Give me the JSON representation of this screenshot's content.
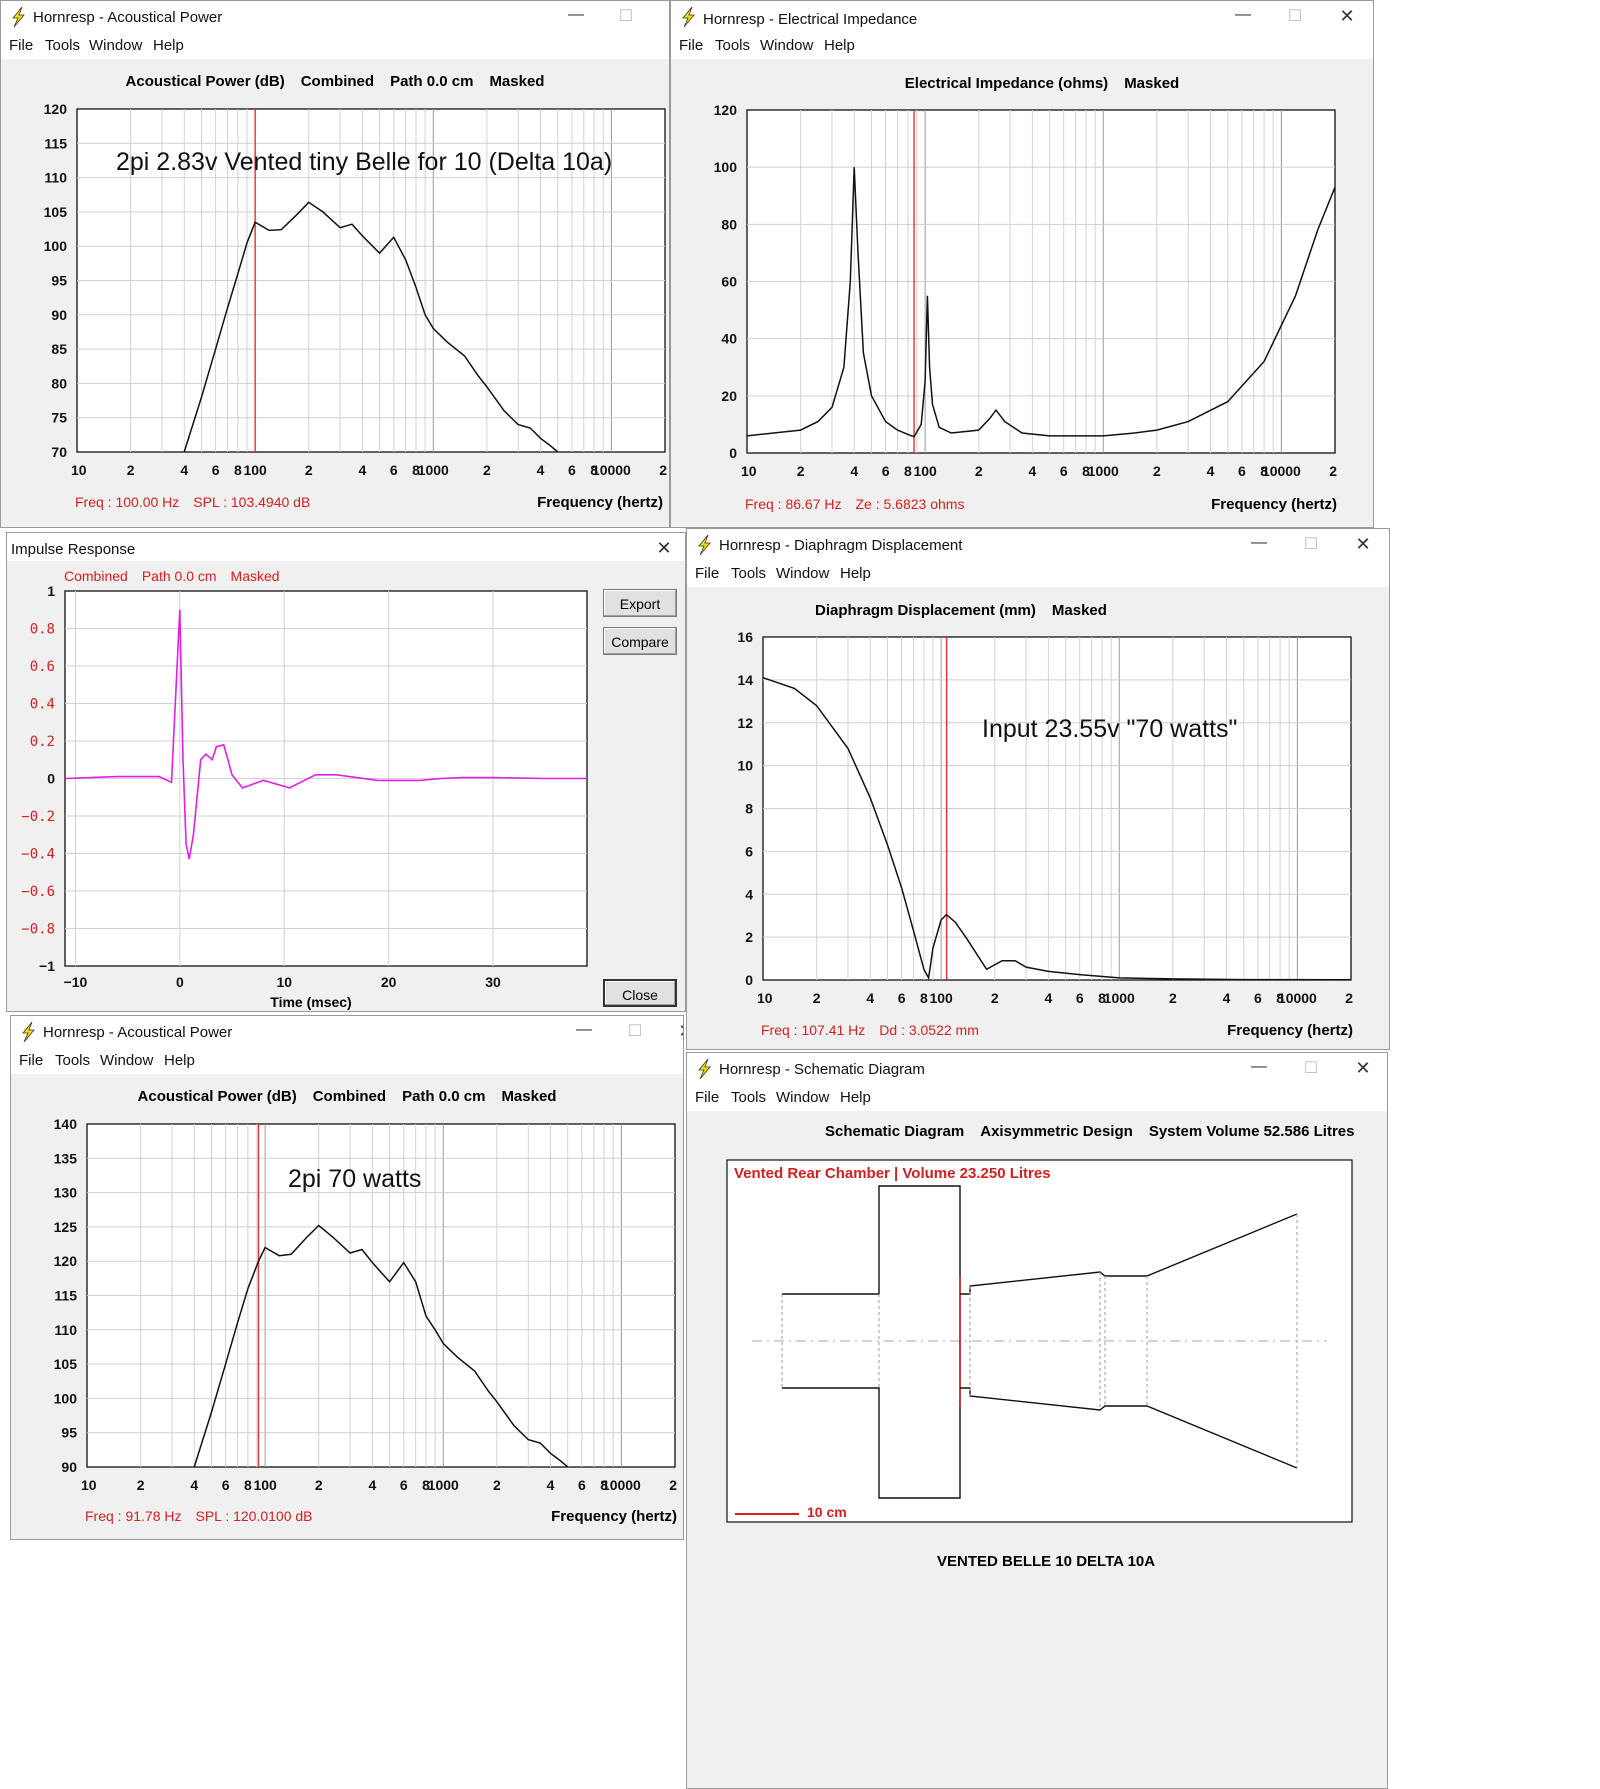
{
  "accent_red": "#e53030",
  "curve_color": "#111111",
  "impulse_color": "#e11fe1",
  "windows": {
    "acoustical_top": {
      "title": "Hornresp - Acoustical Power",
      "menu": [
        "File",
        "Tools",
        "Window",
        "Help"
      ],
      "chart_title": [
        "Acoustical Power (dB)",
        "Combined",
        "Path 0.0 cm",
        "Masked"
      ],
      "annotation": "2pi  2.83v  Vented tiny Belle for 10 (Delta 10a)",
      "status": [
        "Freq : 100.00 Hz",
        "SPL : 103.4940 dB"
      ],
      "xlabel": "Frequency (hertz)"
    },
    "impedance": {
      "title": "Hornresp - Electrical Impedance",
      "menu": [
        "File",
        "Tools",
        "Window",
        "Help"
      ],
      "chart_title": [
        "Electrical Impedance (ohms)",
        "Masked"
      ],
      "status": [
        "Freq : 86.67 Hz",
        "Ze : 5.6823 ohms"
      ],
      "xlabel": "Frequency (hertz)"
    },
    "impulse": {
      "title": "Impulse Response",
      "subtitle": [
        "Combined",
        "Path 0.0 cm",
        "Masked"
      ],
      "xlabel": "Time (msec)",
      "buttons": {
        "export": "Export",
        "compare": "Compare",
        "close": "Close"
      }
    },
    "displacement": {
      "title": "Hornresp - Diaphragm Displacement",
      "menu": [
        "File",
        "Tools",
        "Window",
        "Help"
      ],
      "chart_title": [
        "Diaphragm Displacement (mm)",
        "Masked"
      ],
      "annotation": "Input 23.55v  \"70 watts\"",
      "status": [
        "Freq : 107.41 Hz",
        "Dd : 3.0522 mm"
      ],
      "xlabel": "Frequency (hertz)"
    },
    "acoustical_bottom": {
      "title": "Hornresp - Acoustical Power",
      "menu": [
        "File",
        "Tools",
        "Window",
        "Help"
      ],
      "chart_title": [
        "Acoustical Power (dB)",
        "Combined",
        "Path 0.0 cm",
        "Masked"
      ],
      "annotation": "2pi 70 watts",
      "status": [
        "Freq : 91.78 Hz",
        "SPL : 120.0100 dB"
      ],
      "xlabel": "Frequency (hertz)"
    },
    "schematic": {
      "title": "Hornresp - Schematic Diagram",
      "menu": [
        "File",
        "Tools",
        "Window",
        "Help"
      ],
      "chart_title": [
        "Schematic Diagram",
        "Axisymmetric Design",
        "System Volume 52.586 Litres"
      ],
      "chamber_label": "Vented Rear Chamber | Volume 23.250 Litres",
      "scale_label": "10 cm",
      "footer": "VENTED BELLE 10  DELTA 10A"
    }
  },
  "freq_tick_labels": [
    "10",
    "2",
    "4",
    "6",
    "8",
    "100",
    "2",
    "4",
    "6",
    "8",
    "1000",
    "2",
    "4",
    "6",
    "8",
    "10000",
    "2"
  ],
  "chart_data": [
    {
      "type": "line",
      "id": "acoustical_top",
      "scale": "log-x",
      "xlim": [
        10,
        20000
      ],
      "ylim": [
        70,
        120
      ],
      "y_ticks": [
        "120",
        "115",
        "110",
        "105",
        "100",
        "95",
        "90",
        "85",
        "80",
        "75",
        "70"
      ],
      "cursor_x": 100,
      "series": [
        {
          "x": [
            40,
            50,
            60,
            70,
            80,
            90,
            100,
            120,
            140,
            170,
            200,
            240,
            300,
            350,
            400,
            500,
            600,
            700,
            800,
            900,
            1000,
            1200,
            1500,
            1800,
            2000,
            2500,
            3000,
            3500,
            4000,
            4500,
            5000
          ],
          "y": [
            70,
            78,
            85,
            91,
            96,
            100.5,
            103.5,
            102.3,
            102.4,
            104.5,
            106.4,
            105,
            102.7,
            103.2,
            101.5,
            99,
            101.3,
            98,
            94,
            90,
            88,
            86,
            84,
            81,
            79.5,
            76,
            74,
            73.5,
            72,
            71,
            70
          ]
        }
      ]
    },
    {
      "type": "line",
      "id": "impedance",
      "scale": "log-x",
      "xlim": [
        10,
        20000
      ],
      "ylim": [
        0,
        120
      ],
      "y_ticks": [
        "120",
        "100",
        "80",
        "60",
        "40",
        "20",
        "0"
      ],
      "cursor_x": 86.67,
      "series": [
        {
          "x": [
            10,
            20,
            25,
            30,
            35,
            38,
            40,
            42,
            45,
            50,
            60,
            70,
            80,
            86.67,
            95,
            100,
            103,
            106,
            110,
            120,
            140,
            200,
            230,
            250,
            280,
            350,
            500,
            1000,
            1500,
            2000,
            3000,
            5000,
            8000,
            12000,
            16000,
            20000
          ],
          "y": [
            6,
            8,
            11,
            16,
            30,
            60,
            100,
            70,
            35,
            20,
            11,
            8,
            6.5,
            5.7,
            10,
            25,
            55,
            30,
            17,
            9,
            7,
            8,
            12,
            15,
            11,
            7,
            6,
            6,
            7,
            8,
            11,
            18,
            32,
            55,
            78,
            93
          ]
        }
      ]
    },
    {
      "type": "line",
      "id": "impulse",
      "xlim": [
        -11,
        39
      ],
      "ylim": [
        -1,
        1
      ],
      "y_ticks": [
        "1",
        "0.8",
        "0.6",
        "0.4",
        "0.2",
        "0",
        "-0.2",
        "-0.4",
        "-0.6",
        "-0.8",
        "-1"
      ],
      "x_ticks": [
        -10,
        0,
        10,
        20,
        30
      ],
      "series": [
        {
          "x": [
            -11,
            -6,
            -2,
            -0.8,
            0,
            0.3,
            0.6,
            0.9,
            1.3,
            2,
            2.5,
            3.1,
            3.5,
            4.2,
            4.6,
            5,
            6,
            6.5,
            8,
            10.5,
            13,
            15,
            19,
            23,
            25,
            27,
            30,
            35,
            39
          ],
          "y": [
            0,
            0.01,
            0.01,
            -0.02,
            0.9,
            0.1,
            -0.35,
            -0.43,
            -0.3,
            0.1,
            0.13,
            0.1,
            0.17,
            0.18,
            0.1,
            0.02,
            -0.05,
            -0.04,
            -0.01,
            -0.05,
            0.02,
            0.02,
            -0.01,
            -0.01,
            0,
            0.005,
            0.005,
            0,
            0
          ]
        }
      ]
    },
    {
      "type": "line",
      "id": "displacement",
      "scale": "log-x",
      "xlim": [
        10,
        20000
      ],
      "ylim": [
        0,
        16
      ],
      "y_ticks": [
        "16",
        "14",
        "12",
        "10",
        "8",
        "6",
        "4",
        "2",
        "0"
      ],
      "cursor_x": 107.41,
      "series": [
        {
          "x": [
            10,
            15,
            20,
            30,
            40,
            50,
            60,
            70,
            80,
            85,
            90,
            100,
            107,
            120,
            140,
            180,
            220,
            260,
            300,
            400,
            600,
            1000,
            2000,
            5000,
            20000
          ],
          "y": [
            14.1,
            13.6,
            12.8,
            10.8,
            8.5,
            6.3,
            4.3,
            2.3,
            0.5,
            0.1,
            1.5,
            2.8,
            3.05,
            2.7,
            1.9,
            0.5,
            0.9,
            0.9,
            0.6,
            0.4,
            0.25,
            0.1,
            0.05,
            0.02,
            0.01
          ]
        }
      ]
    },
    {
      "type": "line",
      "id": "acoustical_bottom",
      "scale": "log-x",
      "xlim": [
        10,
        20000
      ],
      "ylim": [
        90,
        140
      ],
      "y_ticks": [
        "140",
        "135",
        "130",
        "125",
        "120",
        "115",
        "110",
        "105",
        "100",
        "95",
        "90"
      ],
      "cursor_x": 91.78,
      "series": [
        {
          "x": [
            40,
            50,
            60,
            70,
            80,
            91.78,
            100,
            120,
            140,
            170,
            200,
            240,
            300,
            350,
            400,
            500,
            600,
            700,
            800,
            900,
            1000,
            1200,
            1500,
            1800,
            2000,
            2500,
            3000,
            3500,
            4000,
            4500,
            5000
          ],
          "y": [
            90,
            98,
            105,
            111,
            116,
            120,
            122,
            120.8,
            121,
            123.4,
            125.2,
            123.5,
            121.2,
            121.7,
            119.8,
            117,
            119.8,
            117,
            112,
            110,
            108,
            106,
            104,
            101,
            99.5,
            96,
            94,
            93.5,
            92,
            91,
            90
          ]
        }
      ]
    }
  ]
}
